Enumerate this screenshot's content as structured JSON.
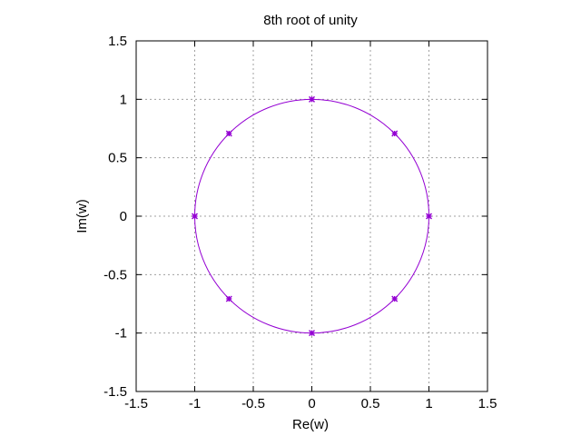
{
  "chart_data": {
    "type": "scatter",
    "title": "8th root of unity",
    "xlabel": "Re(w)",
    "ylabel": "Im(w)",
    "xlim": [
      -1.5,
      1.5
    ],
    "ylim": [
      -1.5,
      1.5
    ],
    "xticks": [
      -1.5,
      -1,
      -0.5,
      0,
      0.5,
      1,
      1.5
    ],
    "yticks": [
      -1.5,
      -1,
      -0.5,
      0,
      0.5,
      1,
      1.5
    ],
    "xtick_labels": [
      "-1.5",
      "-1",
      "-0.5",
      "0",
      "0.5",
      "1",
      "1.5"
    ],
    "ytick_labels": [
      "-1.5",
      "-1",
      "-0.5",
      "0",
      "0.5",
      "1",
      "1.5"
    ],
    "grid": true,
    "grid_style": "dotted",
    "series_color": "#9400d3",
    "circle": {
      "center": [
        0,
        0
      ],
      "radius": 1
    },
    "points": [
      {
        "x": 1,
        "y": 0
      },
      {
        "x": 0.7071,
        "y": 0.7071
      },
      {
        "x": 0,
        "y": 1
      },
      {
        "x": -0.7071,
        "y": 0.7071
      },
      {
        "x": -1,
        "y": 0
      },
      {
        "x": -0.7071,
        "y": -0.7071
      },
      {
        "x": 0,
        "y": -1
      },
      {
        "x": 0.7071,
        "y": -0.7071
      }
    ]
  }
}
